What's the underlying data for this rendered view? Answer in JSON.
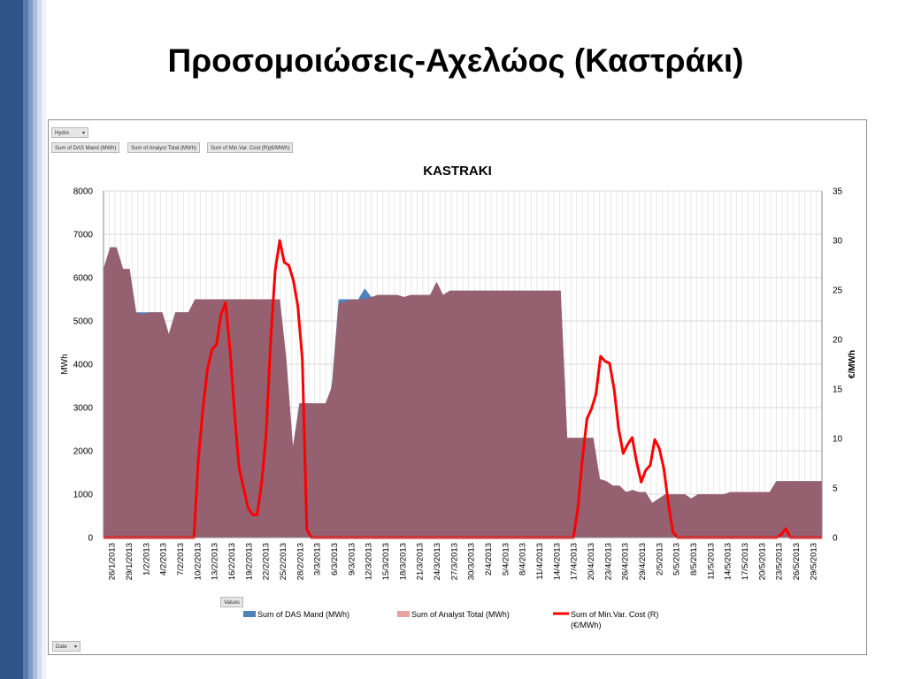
{
  "slide": {
    "title": "Προσομοιώσεις-Αχελώος (Καστράκι)"
  },
  "pivot": {
    "filter_field": "Hydro",
    "value_fields": [
      "Sum of DAS Mand  (MWh)",
      "Sum of Analyst Total (MWh)",
      "Sum of Min.Var. Cost (R)(€/MWh)"
    ],
    "values_button": "Values",
    "axis_field": "Date"
  },
  "colors": {
    "das": "#4f81bd",
    "analyst": "#c0504d",
    "overlay": "#956070",
    "cost": "#ff0000",
    "slide_bar": "#2f5488"
  },
  "chart_data": {
    "type": "area",
    "title": "KASTRAKI",
    "ylabel": "MWh",
    "y2label": "€/MWh",
    "ylim": [
      0,
      8000
    ],
    "y2lim": [
      0,
      35
    ],
    "yticks": [
      0,
      1000,
      2000,
      3000,
      4000,
      5000,
      6000,
      7000,
      8000
    ],
    "y2ticks": [
      0,
      5,
      10,
      15,
      20,
      25,
      30,
      35
    ],
    "x_labels": [
      "26/1/2013",
      "29/1/2013",
      "1/2/2013",
      "4/2/2013",
      "7/2/2013",
      "10/2/2013",
      "13/2/2013",
      "16/2/2013",
      "19/2/2013",
      "22/2/2013",
      "25/2/2013",
      "28/2/2013",
      "3/3/2013",
      "6/3/2013",
      "9/3/2013",
      "12/3/2013",
      "15/3/2013",
      "18/3/2013",
      "21/3/2013",
      "24/3/2013",
      "27/3/2013",
      "30/3/2013",
      "2/4/2013",
      "5/4/2013",
      "8/4/2013",
      "11/4/2013",
      "14/4/2013",
      "17/4/2013",
      "20/4/2013",
      "23/4/2013",
      "26/4/2013",
      "29/4/2013",
      "2/5/2013",
      "5/5/2013",
      "8/5/2013",
      "11/5/2013",
      "14/5/2013",
      "17/5/2013",
      "20/5/2013",
      "23/5/2013",
      "26/5/2013",
      "29/5/2013"
    ],
    "series": [
      {
        "name": "Sum of DAS Mand  (MWh)",
        "axis": "left",
        "values": [
          6200,
          6700,
          6700,
          6200,
          6200,
          5200,
          5200,
          5200,
          5200,
          5200,
          4700,
          5200,
          5200,
          5200,
          5500,
          5500,
          5500,
          5500,
          5500,
          5000,
          5500,
          5500,
          5500,
          5500,
          5050,
          5500,
          5350,
          5500,
          4100,
          2100,
          3100,
          3100,
          3100,
          2600,
          2700,
          3600,
          5500,
          5500,
          5500,
          5500,
          5750,
          5550,
          5600,
          5600,
          5600,
          5600,
          5550,
          5600,
          5600,
          5600,
          5600,
          5900,
          5600,
          5700,
          5700,
          5700,
          5700,
          5700,
          5700,
          5700,
          5700,
          5700,
          5700,
          5700,
          5700,
          5700,
          5700,
          5700,
          5700,
          5700,
          5700,
          2300,
          2300,
          2300,
          2300,
          2300,
          1350,
          1300,
          1200,
          1200,
          1050,
          1050,
          1050,
          1050,
          800,
          850,
          1000,
          1000,
          1000,
          1000,
          900,
          1000,
          1000,
          1000,
          1000,
          1000,
          1050,
          1050,
          1050,
          1050,
          1050,
          1050,
          1050,
          1300,
          1300,
          1300,
          1300,
          1300,
          1300,
          1300,
          1300
        ]
      },
      {
        "name": "Sum of Analyst Total (MWh)",
        "axis": "left",
        "values": [
          6200,
          6700,
          6700,
          6200,
          6200,
          5200,
          5150,
          5200,
          5200,
          5200,
          4700,
          5200,
          5200,
          5200,
          5500,
          5500,
          5500,
          5500,
          5500,
          5500,
          5500,
          5500,
          5500,
          5500,
          5500,
          5500,
          5500,
          5500,
          4100,
          2100,
          3100,
          3100,
          3100,
          3100,
          3100,
          3500,
          5400,
          5450,
          5500,
          5500,
          5500,
          5550,
          5600,
          5600,
          5600,
          5600,
          5550,
          5600,
          5600,
          5600,
          5600,
          5900,
          5600,
          5700,
          5700,
          5700,
          5700,
          5700,
          5700,
          5700,
          5700,
          5700,
          5700,
          5700,
          5700,
          5700,
          5700,
          5700,
          5700,
          5700,
          5700,
          2300,
          2300,
          2300,
          2300,
          2300,
          1350,
          1300,
          1200,
          1200,
          1050,
          1100,
          1050,
          1050,
          800,
          900,
          1000,
          1000,
          1000,
          1000,
          900,
          1000,
          1000,
          1000,
          1000,
          1000,
          1050,
          1050,
          1050,
          1050,
          1050,
          1050,
          1050,
          1300,
          1300,
          1300,
          1300,
          1300,
          1300,
          1300,
          1300
        ]
      },
      {
        "name": "Sum of Min.Var. Cost (R)\n(€/MWh)",
        "axis": "right",
        "values": [
          0,
          0,
          0,
          0,
          0,
          0,
          0,
          0,
          0,
          0,
          0,
          0,
          0,
          0,
          0,
          0,
          0,
          0,
          0,
          0,
          0,
          8,
          13,
          17,
          19,
          19.5,
          22.5,
          23.7,
          19,
          12.5,
          7,
          5,
          3,
          2.3,
          2.3,
          5.5,
          10.5,
          20,
          27,
          30,
          27.8,
          27.5,
          26,
          23.4,
          18,
          0.8,
          0,
          0,
          0,
          0,
          0,
          0,
          0,
          0,
          0,
          0,
          0,
          0,
          0,
          0,
          0,
          0,
          0,
          0,
          0,
          0,
          0,
          0,
          0,
          0,
          0,
          0,
          0,
          0,
          0,
          0,
          0,
          0,
          0,
          0,
          0,
          0,
          0,
          0,
          0,
          0,
          0,
          0,
          0,
          0,
          0,
          0,
          0,
          0,
          0,
          0,
          0,
          0,
          0,
          0,
          0,
          0,
          0,
          0,
          0,
          3,
          8,
          12,
          13,
          14.5,
          18.3,
          17.8,
          17.6,
          15,
          11,
          8.5,
          9.4,
          10.1,
          7.6,
          5.6,
          6.8,
          7.3,
          9.9,
          9,
          7,
          3.5,
          0.6,
          0,
          0,
          0,
          0,
          0,
          0,
          0,
          0,
          0,
          0,
          0,
          0,
          0,
          0,
          0,
          0,
          0,
          0,
          0,
          0,
          0,
          0,
          0,
          0.3,
          0.9,
          0,
          0,
          0,
          0,
          0,
          0,
          0,
          0
        ]
      }
    ]
  }
}
